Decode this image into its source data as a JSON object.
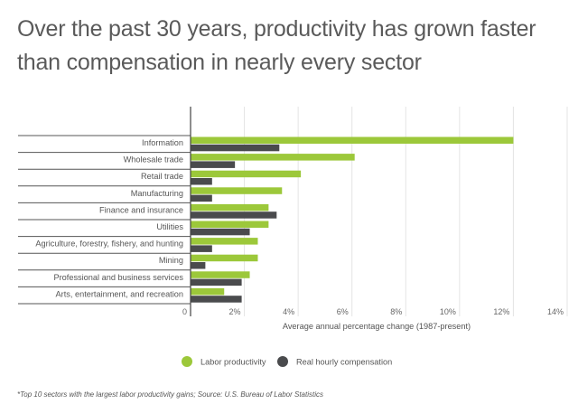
{
  "title": "Over the past 30 years, productivity has grown faster than compensation in nearly every sector",
  "footnote": "*Top 10 sectors with the largest labor productivity gains;  Source: U.S. Bureau of Labor Statistics",
  "chart_data": {
    "type": "bar",
    "orientation": "horizontal",
    "title": "Over the past 30 years, productivity has grown faster than compensation in nearly every sector",
    "xlabel": "Average annual percentage change (1987-present)",
    "ylabel": "",
    "xlim": [
      0,
      14
    ],
    "xticks": [
      0,
      2,
      4,
      6,
      8,
      10,
      12,
      14
    ],
    "xtick_labels": [
      "0",
      "2%",
      "4%",
      "6%",
      "8%",
      "10%",
      "12%",
      "14%"
    ],
    "grid": "vertical",
    "legend_position": "bottom",
    "categories": [
      "Information",
      "Wholesale trade",
      "Retail trade",
      "Manufacturing",
      "Finance and insurance",
      "Utilities",
      "Agriculture, forestry, fishery, and hunting",
      "Mining",
      "Professional and business services",
      "Arts, entertainment, and recreation"
    ],
    "series": [
      {
        "name": "Labor productivity",
        "color": "#9cc83a",
        "values": [
          12.0,
          6.1,
          4.1,
          3.4,
          2.9,
          2.9,
          2.5,
          2.5,
          2.2,
          1.25
        ]
      },
      {
        "name": "Real hourly compensation",
        "color": "#4a4b4d",
        "values": [
          3.3,
          1.65,
          0.8,
          0.8,
          3.2,
          2.2,
          0.8,
          0.55,
          1.9,
          1.9
        ]
      }
    ]
  }
}
